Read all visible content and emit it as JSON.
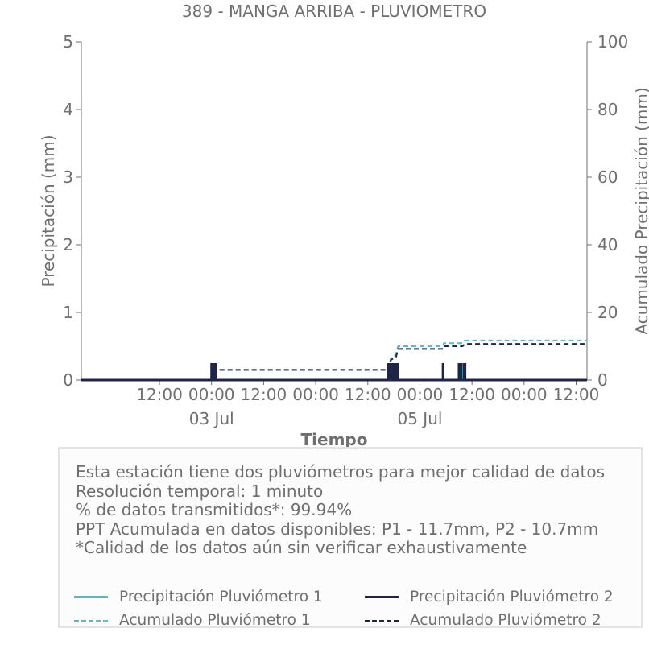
{
  "chart_data": {
    "type": "line",
    "title": "389 - MANGA ARRIBA - PLUVIOMETRO",
    "xlabel": "Tiempo",
    "ylabel": "Precipitación (mm)",
    "y2label": "Acumulado Precipitación (mm)",
    "ylim": [
      0,
      5
    ],
    "y2lim": [
      0,
      100
    ],
    "yticks": [
      "0",
      "1",
      "2",
      "3",
      "4",
      "5"
    ],
    "y2ticks": [
      "0",
      "20",
      "40",
      "60",
      "80",
      "100"
    ],
    "xlim": [
      "2024-07-01 18:00",
      "2024-07-06 14:30"
    ],
    "xticks": [
      {
        "x": "2024-07-02 12:00",
        "label": "12:00"
      },
      {
        "x": "2024-07-03 00:00",
        "label": "00:00",
        "sub": "03 Jul"
      },
      {
        "x": "2024-07-03 12:00",
        "label": "12:00"
      },
      {
        "x": "2024-07-04 00:00",
        "label": "00:00"
      },
      {
        "x": "2024-07-04 12:00",
        "label": "12:00"
      },
      {
        "x": "2024-07-05 00:00",
        "label": "00:00",
        "sub": "05 Jul"
      },
      {
        "x": "2024-07-05 12:00",
        "label": "12:00"
      },
      {
        "x": "2024-07-06 00:00",
        "label": "00:00"
      },
      {
        "x": "2024-07-06 12:00",
        "label": "12:00"
      }
    ],
    "grid": false,
    "legend_position": "bottom",
    "series": [
      {
        "name": "Precipitación Pluviómetro 1",
        "axis": "left",
        "style": "solid",
        "color": "#5fb7c2",
        "values": [
          [
            "2024-07-04 17:00",
            0.25
          ],
          [
            "2024-07-04 17:20",
            0.25
          ],
          [
            "2024-07-04 17:40",
            0.25
          ],
          [
            "2024-07-04 18:10",
            0.25
          ],
          [
            "2024-07-04 18:30",
            0.25
          ],
          [
            "2024-07-04 18:50",
            0.25
          ],
          [
            "2024-07-05 05:20",
            0.25
          ],
          [
            "2024-07-05 09:15",
            0.25
          ],
          [
            "2024-07-05 09:40",
            0.25
          ],
          [
            "2024-07-05 10:00",
            0.25
          ],
          [
            "2024-07-05 10:20",
            0.25
          ]
        ]
      },
      {
        "name": "Precipitación Pluviómetro 2",
        "axis": "left",
        "style": "solid",
        "color": "#1f2547",
        "values": [
          [
            "2024-07-03 00:00",
            0.25
          ],
          [
            "2024-07-03 00:10",
            0.25
          ],
          [
            "2024-07-03 00:20",
            0.25
          ],
          [
            "2024-07-03 00:30",
            0.25
          ],
          [
            "2024-07-03 00:40",
            0.25
          ],
          [
            "2024-07-03 00:55",
            0.25
          ],
          [
            "2024-07-04 16:45",
            0.25
          ],
          [
            "2024-07-04 17:05",
            0.25
          ],
          [
            "2024-07-04 17:30",
            0.25
          ],
          [
            "2024-07-04 18:00",
            0.25
          ],
          [
            "2024-07-04 18:20",
            0.25
          ],
          [
            "2024-07-04 18:40",
            0.25
          ],
          [
            "2024-07-04 19:00",
            0.25
          ],
          [
            "2024-07-05 05:20",
            0.25
          ],
          [
            "2024-07-05 09:00",
            0.25
          ],
          [
            "2024-07-05 09:30",
            0.25
          ],
          [
            "2024-07-05 10:10",
            0.25
          ],
          [
            "2024-07-05 10:25",
            0.25
          ]
        ]
      },
      {
        "name": "Acumulado Pluviómetro 1",
        "axis": "right",
        "style": "dashed",
        "color": "#5fb7c2",
        "values": [
          [
            "2024-07-01 18:00",
            0
          ],
          [
            "2024-07-03 00:00",
            0
          ],
          [
            "2024-07-03 01:00",
            3.0
          ],
          [
            "2024-07-04 16:50",
            3.0
          ],
          [
            "2024-07-04 17:20",
            6.5
          ],
          [
            "2024-07-04 18:30",
            7.5
          ],
          [
            "2024-07-04 19:00",
            10.0
          ],
          [
            "2024-07-05 05:20",
            10.0
          ],
          [
            "2024-07-05 05:30",
            10.9
          ],
          [
            "2024-07-05 09:50",
            10.9
          ],
          [
            "2024-07-05 10:20",
            11.7
          ],
          [
            "2024-07-06 14:30",
            11.7
          ]
        ]
      },
      {
        "name": "Acumulado Pluviómetro 2",
        "axis": "right",
        "style": "dashed",
        "color": "#1f2547",
        "values": [
          [
            "2024-07-01 18:00",
            0
          ],
          [
            "2024-07-03 00:00",
            0
          ],
          [
            "2024-07-03 01:00",
            3.0
          ],
          [
            "2024-07-04 16:50",
            3.0
          ],
          [
            "2024-07-04 17:20",
            6.0
          ],
          [
            "2024-07-04 18:30",
            6.8
          ],
          [
            "2024-07-04 19:00",
            9.2
          ],
          [
            "2024-07-05 05:20",
            9.2
          ],
          [
            "2024-07-05 05:30",
            10.0
          ],
          [
            "2024-07-05 09:50",
            10.0
          ],
          [
            "2024-07-05 10:20",
            10.7
          ],
          [
            "2024-07-06 14:30",
            10.7
          ]
        ]
      }
    ]
  },
  "info": {
    "lines": [
      "Esta estación tiene dos pluviómetros para mejor calidad de datos",
      "Resolución temporal: 1 minuto",
      "% de datos transmitidos*: 99.94%",
      "PPT Acumulada en datos disponibles: P1 - 11.7mm, P2 - 10.7mm",
      "*Calidad de los datos aún sin verificar exhaustivamente"
    ]
  },
  "legend": {
    "items": [
      {
        "label": "Precipitación Pluviómetro 1",
        "swatch": "solid1"
      },
      {
        "label": "Precipitación Pluviómetro 2",
        "swatch": "solid2"
      },
      {
        "label": "Acumulado Pluviómetro 1",
        "swatch": "dash1"
      },
      {
        "label": "Acumulado Pluviómetro 2",
        "swatch": "dash2"
      }
    ]
  }
}
